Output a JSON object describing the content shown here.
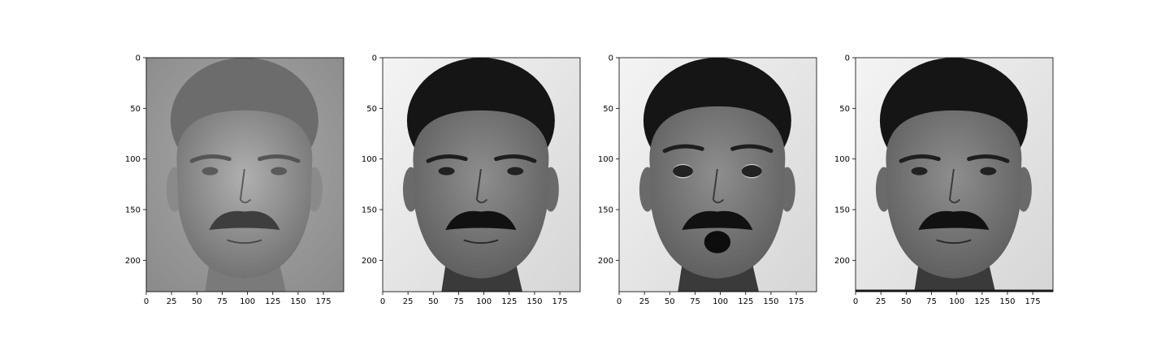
{
  "chart_data": [
    {
      "type": "image",
      "content": "grayscale face image (mean-subtracted / eigenface-like)",
      "xlim": [
        0,
        195
      ],
      "ylim": [
        231,
        0
      ],
      "xticks": [
        0,
        25,
        50,
        75,
        100,
        125,
        150,
        175
      ],
      "yticks": [
        0,
        50,
        100,
        150,
        200
      ],
      "tone": "mid-gray"
    },
    {
      "type": "image",
      "content": "grayscale face, neutral expression",
      "xlim": [
        0,
        195
      ],
      "ylim": [
        231,
        0
      ],
      "xticks": [
        0,
        25,
        50,
        75,
        100,
        125,
        150,
        175
      ],
      "yticks": [
        0,
        50,
        100,
        150,
        200
      ],
      "tone": "light"
    },
    {
      "type": "image",
      "content": "grayscale face, surprised expression",
      "xlim": [
        0,
        195
      ],
      "ylim": [
        231,
        0
      ],
      "xticks": [
        0,
        25,
        50,
        75,
        100,
        125,
        150,
        175
      ],
      "yticks": [
        0,
        50,
        100,
        150,
        200
      ],
      "tone": "light"
    },
    {
      "type": "image",
      "content": "grayscale face, neutral expression (reconstruction)",
      "xlim": [
        0,
        195
      ],
      "ylim": [
        231,
        0
      ],
      "xticks": [
        0,
        25,
        50,
        75,
        100,
        125,
        150,
        175
      ],
      "yticks": [
        0,
        50,
        100,
        150,
        200
      ],
      "tone": "light"
    }
  ]
}
